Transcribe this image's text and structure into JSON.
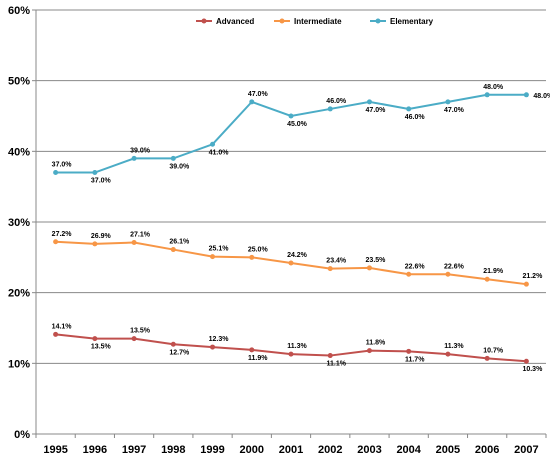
{
  "chart_data": {
    "type": "line",
    "title": "",
    "xlabel": "",
    "ylabel": "",
    "x": [
      "1995",
      "1996",
      "1997",
      "1998",
      "1999",
      "2000",
      "2001",
      "2002",
      "2003",
      "2004",
      "2005",
      "2006",
      "2007"
    ],
    "yticks": [
      "0%",
      "10%",
      "20%",
      "30%",
      "40%",
      "50%",
      "60%"
    ],
    "ylim": [
      0,
      60
    ],
    "grid": true,
    "legend_position": "top-center",
    "series": [
      {
        "name": "Advanced",
        "color": "#c0504d",
        "values": [
          14.1,
          13.5,
          13.5,
          12.7,
          12.3,
          11.9,
          11.3,
          11.1,
          11.8,
          11.7,
          11.3,
          10.7,
          10.3
        ],
        "labels": [
          "14.1%",
          "13.5%",
          "13.5%",
          "12.7%",
          "12.3%",
          "11.9%",
          "11.3%",
          "11.1%",
          "11.8%",
          "11.7%",
          "11.3%",
          "10.7%",
          "10.3%"
        ]
      },
      {
        "name": "Intermediate",
        "color": "#f79646",
        "values": [
          27.2,
          26.9,
          27.1,
          26.1,
          25.1,
          25.0,
          24.2,
          23.4,
          23.5,
          22.6,
          22.6,
          21.9,
          21.2
        ],
        "labels": [
          "27.2%",
          "26.9%",
          "27.1%",
          "26.1%",
          "25.1%",
          "25.0%",
          "24.2%",
          "23.4%",
          "23.5%",
          "22.6%",
          "22.6%",
          "21.9%",
          "21.2%"
        ]
      },
      {
        "name": "Elementary",
        "color": "#4bacc6",
        "values": [
          37.0,
          37.0,
          39.0,
          39.0,
          41.0,
          47.0,
          45.0,
          46.0,
          47.0,
          46.0,
          47.0,
          48.0,
          48.0
        ],
        "labels": [
          "37.0%",
          "37.0%",
          "39.0%",
          "39.0%",
          "41.0%",
          "47.0%",
          "45.0%",
          "46.0%",
          "47.0%",
          "46.0%",
          "47.0%",
          "48.0%",
          "48.0%"
        ]
      }
    ]
  }
}
